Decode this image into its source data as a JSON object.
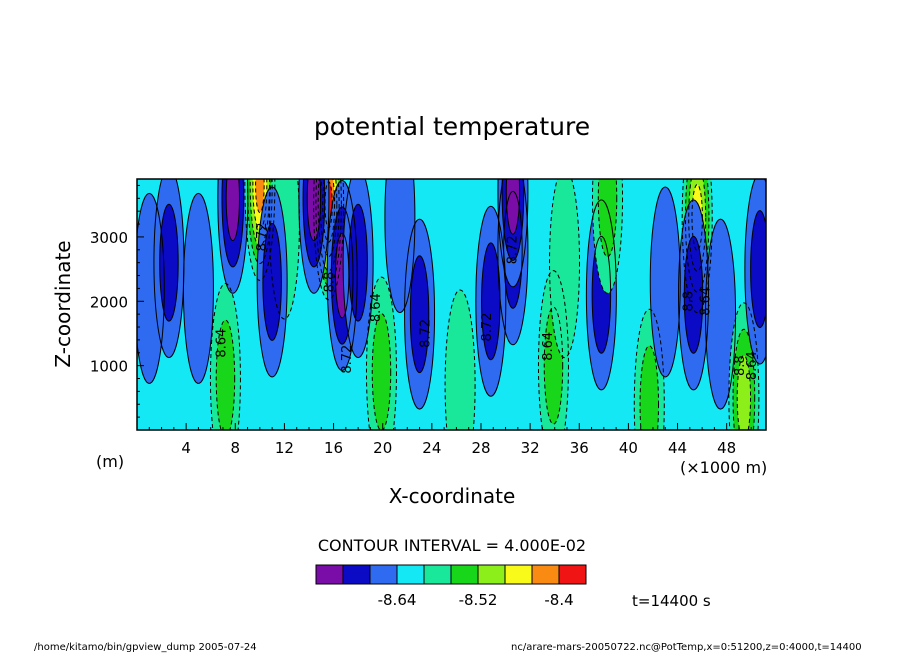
{
  "chart_data": {
    "type": "heatmap",
    "title": "potential temperature",
    "xlabel": "X-coordinate",
    "ylabel": "Z-coordinate",
    "x_unit_left": "(m)",
    "x_unit_right": "(×1000 m)",
    "x_ticks": [
      "4",
      "8",
      "12",
      "16",
      "20",
      "24",
      "28",
      "32",
      "36",
      "40",
      "44",
      "48"
    ],
    "y_ticks": [
      "1000",
      "2000",
      "3000"
    ],
    "xlim": [
      0,
      51.2
    ],
    "ylim": [
      0,
      3900
    ],
    "contour_interval_text": "CONTOUR INTERVAL = 4.000E-02",
    "time_text": "t=14400 s",
    "colorbar": {
      "colors": [
        "#7a0da8",
        "#0b0bc6",
        "#2f6bf0",
        "#14e8f4",
        "#19e89b",
        "#18d61a",
        "#8cef1a",
        "#f9f91a",
        "#f98a12",
        "#f01414"
      ],
      "labels": [
        "-8.64",
        "-8.52",
        "-8.4"
      ]
    },
    "contour_labels": [
      {
        "x": 10.5,
        "z": 3000,
        "text": "8.72"
      },
      {
        "x": 16.0,
        "z": 2300,
        "text": "8.8"
      },
      {
        "x": 7.2,
        "z": 1350,
        "text": "8.64"
      },
      {
        "x": 17.4,
        "z": 1100,
        "text": "8.72"
      },
      {
        "x": 19.8,
        "z": 1900,
        "text": "8.64"
      },
      {
        "x": 23.8,
        "z": 1500,
        "text": "8.72"
      },
      {
        "x": 28.8,
        "z": 1600,
        "text": "8.72"
      },
      {
        "x": 30.9,
        "z": 2800,
        "text": "8.72"
      },
      {
        "x": 33.8,
        "z": 1300,
        "text": "8.64"
      },
      {
        "x": 45.2,
        "z": 2000,
        "text": "8.8"
      },
      {
        "x": 46.6,
        "z": 2000,
        "text": "8.64"
      },
      {
        "x": 49.4,
        "z": 1000,
        "text": "8.8"
      },
      {
        "x": 50.4,
        "z": 1000,
        "text": "8.64"
      }
    ],
    "columns": [
      {
        "x": 1.0,
        "z": 2200,
        "level": 2
      },
      {
        "x": 2.6,
        "z": 2600,
        "level": 1
      },
      {
        "x": 5.0,
        "z": 2200,
        "level": 2
      },
      {
        "x": 7.2,
        "z": 800,
        "level": 5
      },
      {
        "x": 7.8,
        "z": 3600,
        "level": 0
      },
      {
        "x": 10.0,
        "z": 3800,
        "level": 8
      },
      {
        "x": 12.0,
        "z": 3200,
        "level": 4
      },
      {
        "x": 11.0,
        "z": 2300,
        "level": 1
      },
      {
        "x": 15.6,
        "z": 3500,
        "level": 9
      },
      {
        "x": 16.7,
        "z": 2400,
        "level": 0
      },
      {
        "x": 14.4,
        "z": 3600,
        "level": 0
      },
      {
        "x": 19.9,
        "z": 900,
        "level": 5
      },
      {
        "x": 18.0,
        "z": 2600,
        "level": 1
      },
      {
        "x": 21.4,
        "z": 3300,
        "level": 2
      },
      {
        "x": 23.0,
        "z": 1800,
        "level": 1
      },
      {
        "x": 26.3,
        "z": 700,
        "level": 4
      },
      {
        "x": 28.8,
        "z": 2000,
        "level": 1
      },
      {
        "x": 30.6,
        "z": 2800,
        "level": 1
      },
      {
        "x": 30.6,
        "z": 3700,
        "level": 0
      },
      {
        "x": 33.9,
        "z": 1000,
        "level": 5
      },
      {
        "x": 34.8,
        "z": 2600,
        "level": 4
      },
      {
        "x": 37.8,
        "z": 2100,
        "level": 1
      },
      {
        "x": 38.3,
        "z": 3600,
        "level": 5
      },
      {
        "x": 41.7,
        "z": 400,
        "level": 5
      },
      {
        "x": 43.0,
        "z": 2300,
        "level": 2
      },
      {
        "x": 45.6,
        "z": 3300,
        "level": 7
      },
      {
        "x": 45.3,
        "z": 2100,
        "level": 1
      },
      {
        "x": 47.5,
        "z": 1800,
        "level": 2
      },
      {
        "x": 49.4,
        "z": 500,
        "level": 6
      },
      {
        "x": 50.7,
        "z": 2500,
        "level": 1
      }
    ]
  },
  "footer": {
    "left": "/home/kitamo/bin/gpview_dump  2005-07-24",
    "right": "nc/arare-mars-20050722.nc@PotTemp,x=0:51200,z=0:4000,t=14400"
  }
}
